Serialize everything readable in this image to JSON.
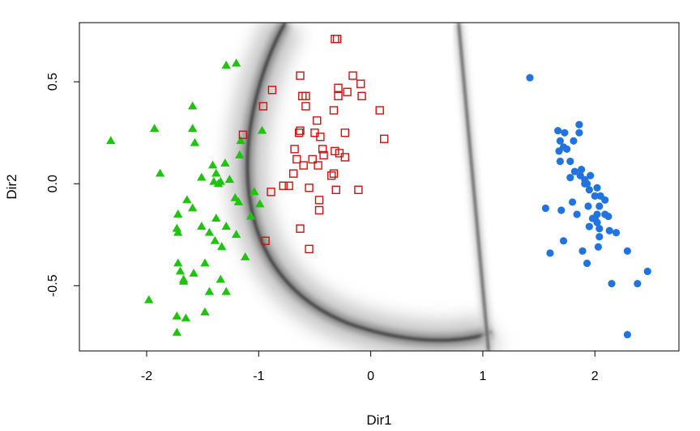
{
  "chart_data": {
    "type": "scatter",
    "title": "",
    "xlabel": "Dir1",
    "ylabel": "Dir2",
    "xlim": [
      -2.6,
      2.75
    ],
    "ylim": [
      -0.82,
      0.79
    ],
    "xticks": [
      -2,
      -1,
      0,
      1,
      2
    ],
    "yticks": [
      -0.5,
      0.0,
      0.5
    ],
    "xtick_labels": [
      "-2",
      "-1",
      "0",
      "1",
      "2"
    ],
    "ytick_labels": [
      "-0.5",
      "0.0",
      "0.5"
    ],
    "grid": false,
    "legend": "none",
    "background_shading": "grey density contours of the class decision boundaries",
    "series": [
      {
        "marker": "filled-triangle",
        "color": "#1fc40f",
        "points": [
          [
            -2.32,
            0.21
          ],
          [
            -1.93,
            0.27
          ],
          [
            -1.88,
            0.05
          ],
          [
            -1.98,
            -0.57
          ],
          [
            -1.29,
            0.58
          ],
          [
            -1.2,
            0.59
          ],
          [
            -1.59,
            0.38
          ],
          [
            -1.59,
            0.27
          ],
          [
            -1.57,
            0.2
          ],
          [
            -1.51,
            0.03
          ],
          [
            -1.41,
            0.09
          ],
          [
            -1.38,
            0.05
          ],
          [
            -1.4,
            0.01
          ],
          [
            -1.36,
            0.0
          ],
          [
            -1.3,
            0.1
          ],
          [
            -1.34,
            0.01
          ],
          [
            -1.26,
            0.02
          ],
          [
            -1.17,
            0.14
          ],
          [
            -1.16,
            0.21
          ],
          [
            -0.97,
            0.26
          ],
          [
            -1.21,
            -0.07
          ],
          [
            -1.04,
            -0.04
          ],
          [
            -0.99,
            -0.1
          ],
          [
            -1.18,
            -0.09
          ],
          [
            -1.64,
            -0.08
          ],
          [
            -1.59,
            -0.12
          ],
          [
            -1.72,
            -0.15
          ],
          [
            -1.38,
            -0.17
          ],
          [
            -1.07,
            -0.16
          ],
          [
            -1.29,
            -0.21
          ],
          [
            -1.51,
            -0.21
          ],
          [
            -1.73,
            -0.22
          ],
          [
            -1.72,
            -0.24
          ],
          [
            -1.44,
            -0.24
          ],
          [
            -1.2,
            -0.25
          ],
          [
            -1.39,
            -0.28
          ],
          [
            -1.33,
            -0.31
          ],
          [
            -1.12,
            -0.36
          ],
          [
            -1.72,
            -0.39
          ],
          [
            -1.48,
            -0.39
          ],
          [
            -1.7,
            -0.43
          ],
          [
            -1.58,
            -0.44
          ],
          [
            -1.67,
            -0.47
          ],
          [
            -1.67,
            -0.48
          ],
          [
            -1.34,
            -0.47
          ],
          [
            -1.44,
            -0.53
          ],
          [
            -1.29,
            -0.53
          ],
          [
            -1.48,
            -0.63
          ],
          [
            -1.73,
            -0.65
          ],
          [
            -1.65,
            -0.66
          ],
          [
            -1.73,
            -0.73
          ]
        ]
      },
      {
        "marker": "open-square",
        "color": "#cc1111",
        "points": [
          [
            -0.3,
            0.71
          ],
          [
            -0.32,
            0.71
          ],
          [
            -0.16,
            0.53
          ],
          [
            -0.63,
            0.53
          ],
          [
            -0.88,
            0.46
          ],
          [
            -0.29,
            0.47
          ],
          [
            -0.09,
            0.49
          ],
          [
            -0.21,
            0.45
          ],
          [
            -0.61,
            0.43
          ],
          [
            -0.58,
            0.43
          ],
          [
            -0.29,
            0.43
          ],
          [
            -0.08,
            0.43
          ],
          [
            -0.96,
            0.38
          ],
          [
            -0.58,
            0.38
          ],
          [
            -0.33,
            0.36
          ],
          [
            0.08,
            0.36
          ],
          [
            -0.48,
            0.31
          ],
          [
            -1.14,
            0.24
          ],
          [
            -0.63,
            0.26
          ],
          [
            -0.64,
            0.25
          ],
          [
            -0.5,
            0.25
          ],
          [
            -0.45,
            0.23
          ],
          [
            -0.23,
            0.25
          ],
          [
            0.12,
            0.22
          ],
          [
            -0.68,
            0.17
          ],
          [
            -0.43,
            0.17
          ],
          [
            -0.32,
            0.16
          ],
          [
            -0.28,
            0.15
          ],
          [
            -0.23,
            0.13
          ],
          [
            -0.66,
            0.12
          ],
          [
            -0.52,
            0.12
          ],
          [
            -0.42,
            0.14
          ],
          [
            -0.6,
            0.09
          ],
          [
            -0.47,
            0.09
          ],
          [
            -0.69,
            0.05
          ],
          [
            -0.35,
            0.04
          ],
          [
            -0.33,
            0.05
          ],
          [
            -0.78,
            -0.01
          ],
          [
            -0.73,
            -0.01
          ],
          [
            -0.55,
            -0.02
          ],
          [
            -0.89,
            -0.04
          ],
          [
            -0.31,
            -0.03
          ],
          [
            -0.11,
            -0.03
          ],
          [
            -0.46,
            -0.08
          ],
          [
            -0.46,
            -0.13
          ],
          [
            -0.63,
            -0.22
          ],
          [
            -0.94,
            -0.28
          ],
          [
            -0.55,
            -0.32
          ]
        ]
      },
      {
        "marker": "filled-circle",
        "color": "#2174e0",
        "points": [
          [
            1.42,
            0.52
          ],
          [
            1.86,
            0.29
          ],
          [
            1.73,
            0.25
          ],
          [
            1.81,
            0.21
          ],
          [
            1.67,
            0.26
          ],
          [
            1.69,
            0.21
          ],
          [
            1.72,
            0.18
          ],
          [
            1.86,
            0.25
          ],
          [
            1.68,
            0.16
          ],
          [
            1.75,
            0.17
          ],
          [
            1.69,
            0.11
          ],
          [
            1.78,
            0.11
          ],
          [
            1.82,
            0.06
          ],
          [
            1.88,
            0.07
          ],
          [
            1.87,
            0.04
          ],
          [
            1.96,
            0.04
          ],
          [
            1.91,
            0.02
          ],
          [
            1.93,
            0.0
          ],
          [
            1.91,
            0.0
          ],
          [
            1.78,
            0.03
          ],
          [
            2.02,
            -0.02
          ],
          [
            1.95,
            -0.03
          ],
          [
            2.0,
            -0.06
          ],
          [
            2.05,
            -0.06
          ],
          [
            2.09,
            -0.08
          ],
          [
            1.8,
            -0.09
          ],
          [
            1.94,
            -0.11
          ],
          [
            2.04,
            -0.11
          ],
          [
            1.56,
            -0.12
          ],
          [
            1.7,
            -0.13
          ],
          [
            2.02,
            -0.15
          ],
          [
            2.09,
            -0.15
          ],
          [
            2.12,
            -0.16
          ],
          [
            1.84,
            -0.15
          ],
          [
            1.98,
            -0.17
          ],
          [
            2.0,
            -0.17
          ],
          [
            2.02,
            -0.19
          ],
          [
            1.95,
            -0.21
          ],
          [
            2.04,
            -0.22
          ],
          [
            2.13,
            -0.23
          ],
          [
            2.19,
            -0.24
          ],
          [
            2.04,
            -0.26
          ],
          [
            1.72,
            -0.28
          ],
          [
            2.03,
            -0.31
          ],
          [
            1.6,
            -0.34
          ],
          [
            1.89,
            -0.33
          ],
          [
            2.29,
            -0.33
          ],
          [
            1.93,
            -0.39
          ],
          [
            2.15,
            -0.49
          ],
          [
            2.38,
            -0.49
          ],
          [
            2.47,
            -0.43
          ],
          [
            2.29,
            -0.74
          ]
        ]
      }
    ]
  }
}
